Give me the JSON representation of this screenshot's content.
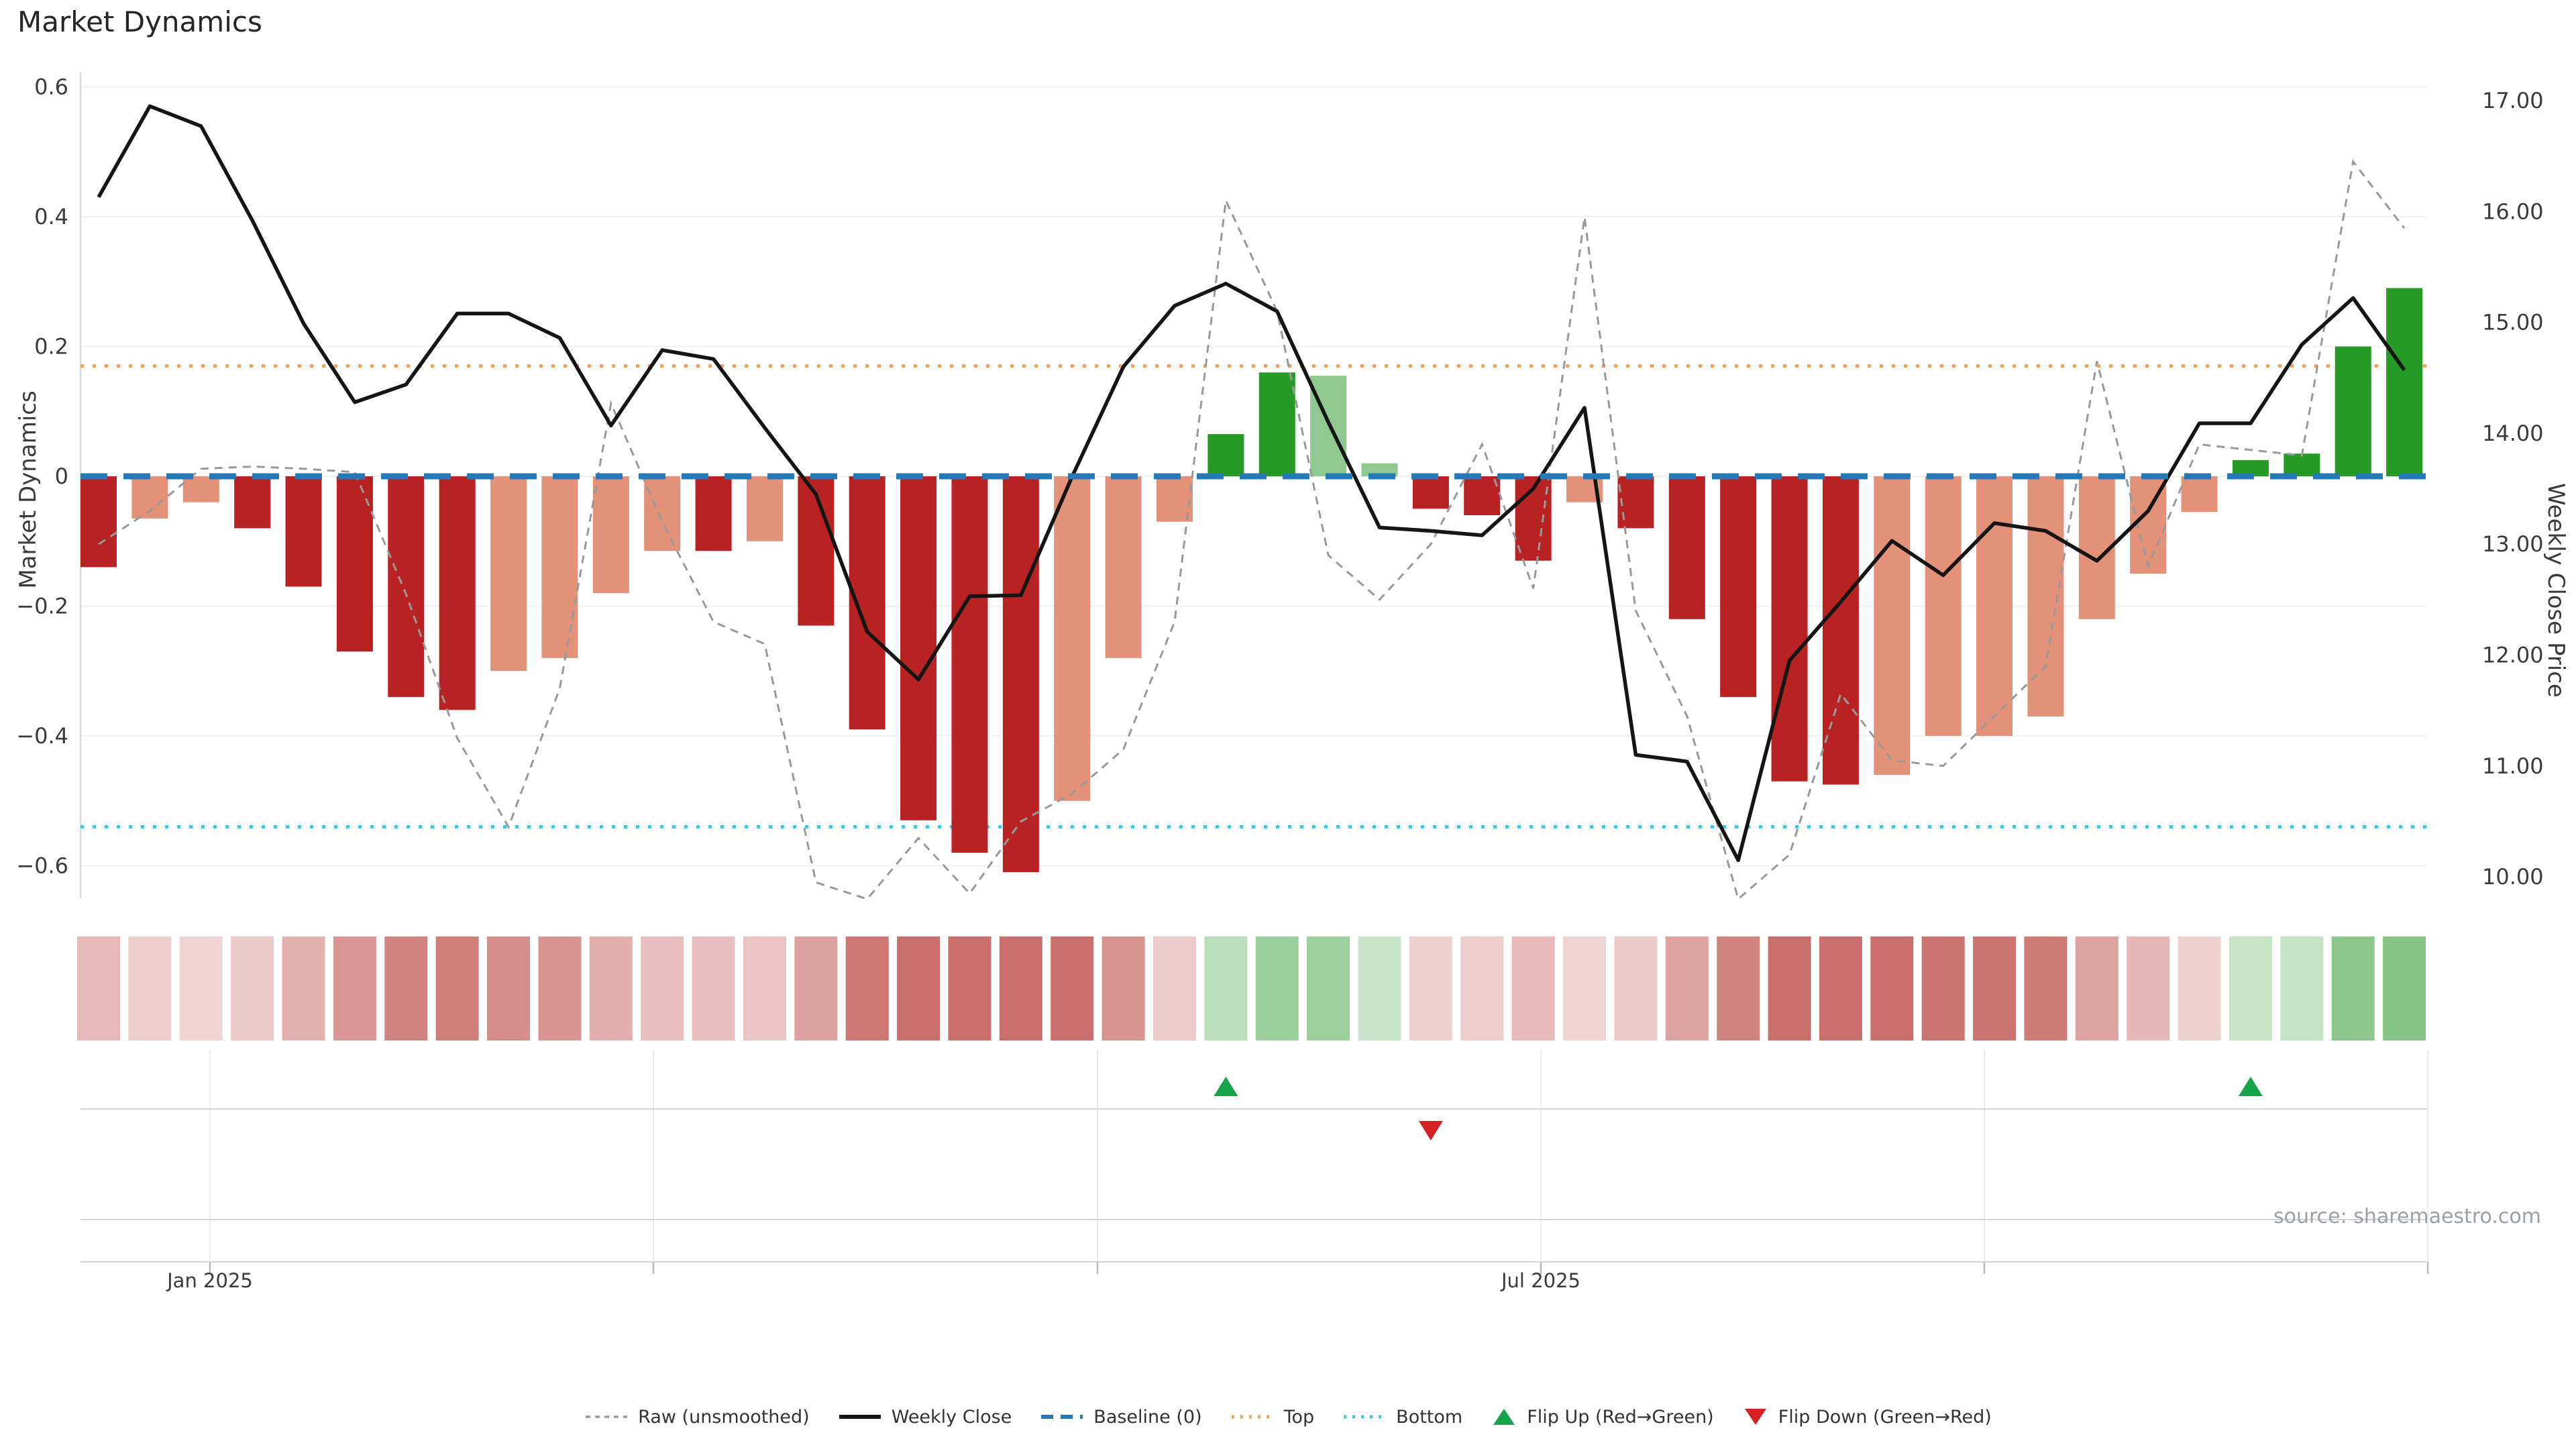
{
  "title": "Market Dynamics",
  "source_note": "source: sharemaestro.com",
  "colors": {
    "dark_red_bar": "#b92222",
    "salmon_bar": "#e39178",
    "green_bar": "#259b25",
    "light_green_bar": "#8fc98f",
    "baseline_blue": "#2579b5",
    "top_orange": "#f2a25c",
    "bottom_cyan": "#3fc8e8",
    "raw_line_gray": "#999999",
    "close_line_black": "#151515",
    "flip_up_green": "#17a34a",
    "flip_down_red": "#d62021",
    "grid": "#f0f0f5",
    "spine": "#d8dce2",
    "row_line": "#d2d2d2",
    "tick_text": "#3b3b3b",
    "heat_red_base": "180,50,45",
    "heat_green_base": "40,150,40"
  },
  "chart_data": {
    "type": "bar",
    "subtype": "combo-bar-line-heatstrip",
    "title": "Market Dynamics",
    "ylabel_left": "Market Dynamics",
    "ylabel_right": "Weekly Close Price",
    "weeks": 46,
    "left_axis": {
      "ticks": [
        0.6,
        0.4,
        0.2,
        0,
        -0.2,
        -0.4,
        -0.6
      ],
      "range": [
        -0.65,
        0.62
      ]
    },
    "right_axis": {
      "ticks": [
        17,
        16,
        15,
        14,
        13,
        12,
        11,
        10
      ],
      "range": [
        9.81,
        17.24
      ]
    },
    "reference_lines": {
      "baseline": 0,
      "top": 0.17,
      "bottom": -0.54
    },
    "bars": {
      "values": [
        -0.14,
        -0.065,
        -0.04,
        -0.08,
        -0.17,
        -0.27,
        -0.34,
        -0.36,
        -0.3,
        -0.28,
        -0.18,
        -0.115,
        -0.115,
        -0.1,
        -0.23,
        -0.39,
        -0.53,
        -0.58,
        -0.61,
        -0.5,
        -0.28,
        -0.07,
        0.065,
        0.16,
        0.155,
        0.02,
        -0.05,
        -0.06,
        -0.13,
        -0.04,
        -0.08,
        -0.22,
        -0.34,
        -0.47,
        -0.475,
        -0.46,
        -0.4,
        -0.4,
        -0.37,
        -0.22,
        -0.15,
        -0.055,
        0.025,
        0.035,
        0.2,
        0.29
      ],
      "categories": [
        "dark",
        "salmon",
        "salmon",
        "dark",
        "dark",
        "dark",
        "dark",
        "dark",
        "salmon",
        "salmon",
        "salmon",
        "salmon",
        "dark",
        "salmon",
        "dark",
        "dark",
        "dark",
        "dark",
        "dark",
        "salmon",
        "salmon",
        "salmon",
        "green",
        "green",
        "lightgreen",
        "lightgreen",
        "dark",
        "dark",
        "dark",
        "salmon",
        "dark",
        "dark",
        "dark",
        "dark",
        "dark",
        "salmon",
        "salmon",
        "salmon",
        "salmon",
        "salmon",
        "salmon",
        "salmon",
        "green",
        "green",
        "green",
        "green"
      ]
    },
    "series": [
      {
        "name": "Weekly Close",
        "values": [
          16.13,
          16.95,
          16.77,
          15.92,
          14.99,
          14.28,
          14.44,
          15.08,
          15.08,
          14.86,
          14.07,
          14.75,
          14.67,
          14.05,
          13.45,
          12.21,
          11.78,
          12.53,
          12.54,
          13.61,
          14.6,
          15.15,
          15.35,
          15.1,
          14.1,
          13.15,
          13.12,
          13.08,
          13.5,
          14.23,
          11.1,
          11.04,
          10.15,
          11.95,
          12.48,
          13.03,
          12.72,
          13.19,
          13.12,
          12.85,
          13.3,
          14.09,
          14.09,
          14.8,
          15.22,
          14.57
        ]
      },
      {
        "name": "Raw (unsmoothed)",
        "values": [
          13.0,
          13.3,
          13.68,
          13.7,
          13.68,
          13.65,
          12.55,
          11.25,
          10.45,
          11.7,
          14.27,
          13.2,
          12.3,
          12.1,
          9.95,
          9.8,
          10.35,
          9.85,
          10.5,
          10.75,
          11.15,
          12.3,
          16.1,
          15.1,
          12.9,
          12.5,
          13.0,
          13.9,
          12.6,
          15.95,
          12.4,
          11.45,
          9.8,
          10.2,
          11.65,
          11.05,
          11.0,
          11.45,
          11.9,
          14.65,
          12.8,
          13.9,
          13.85,
          13.8,
          16.45,
          15.85
        ]
      }
    ],
    "flip_up_weeks": [
      23,
      43
    ],
    "flip_down_weeks": [
      27
    ],
    "x_ticks": [
      {
        "label": "Jan 2025",
        "x": 313
      },
      {
        "label": "",
        "x": 974
      },
      {
        "label": "",
        "x": 1636
      },
      {
        "label": "Jul 2025",
        "x": 2297
      },
      {
        "label": "",
        "x": 2958
      },
      {
        "label": "",
        "x": 3619
      }
    ]
  },
  "legend": {
    "items": [
      {
        "label": "Raw (unsmoothed)",
        "swatch": "dashed-gray"
      },
      {
        "label": "Weekly Close",
        "swatch": "solid-black"
      },
      {
        "label": "Baseline (0)",
        "swatch": "dashed-blue"
      },
      {
        "label": "Top",
        "swatch": "dotted-orange"
      },
      {
        "label": "Bottom",
        "swatch": "dotted-cyan"
      },
      {
        "label": "Flip Up (Red→Green)",
        "swatch": "triangle-up"
      },
      {
        "label": "Flip Down (Green→Red)",
        "swatch": "triangle-down"
      }
    ]
  }
}
